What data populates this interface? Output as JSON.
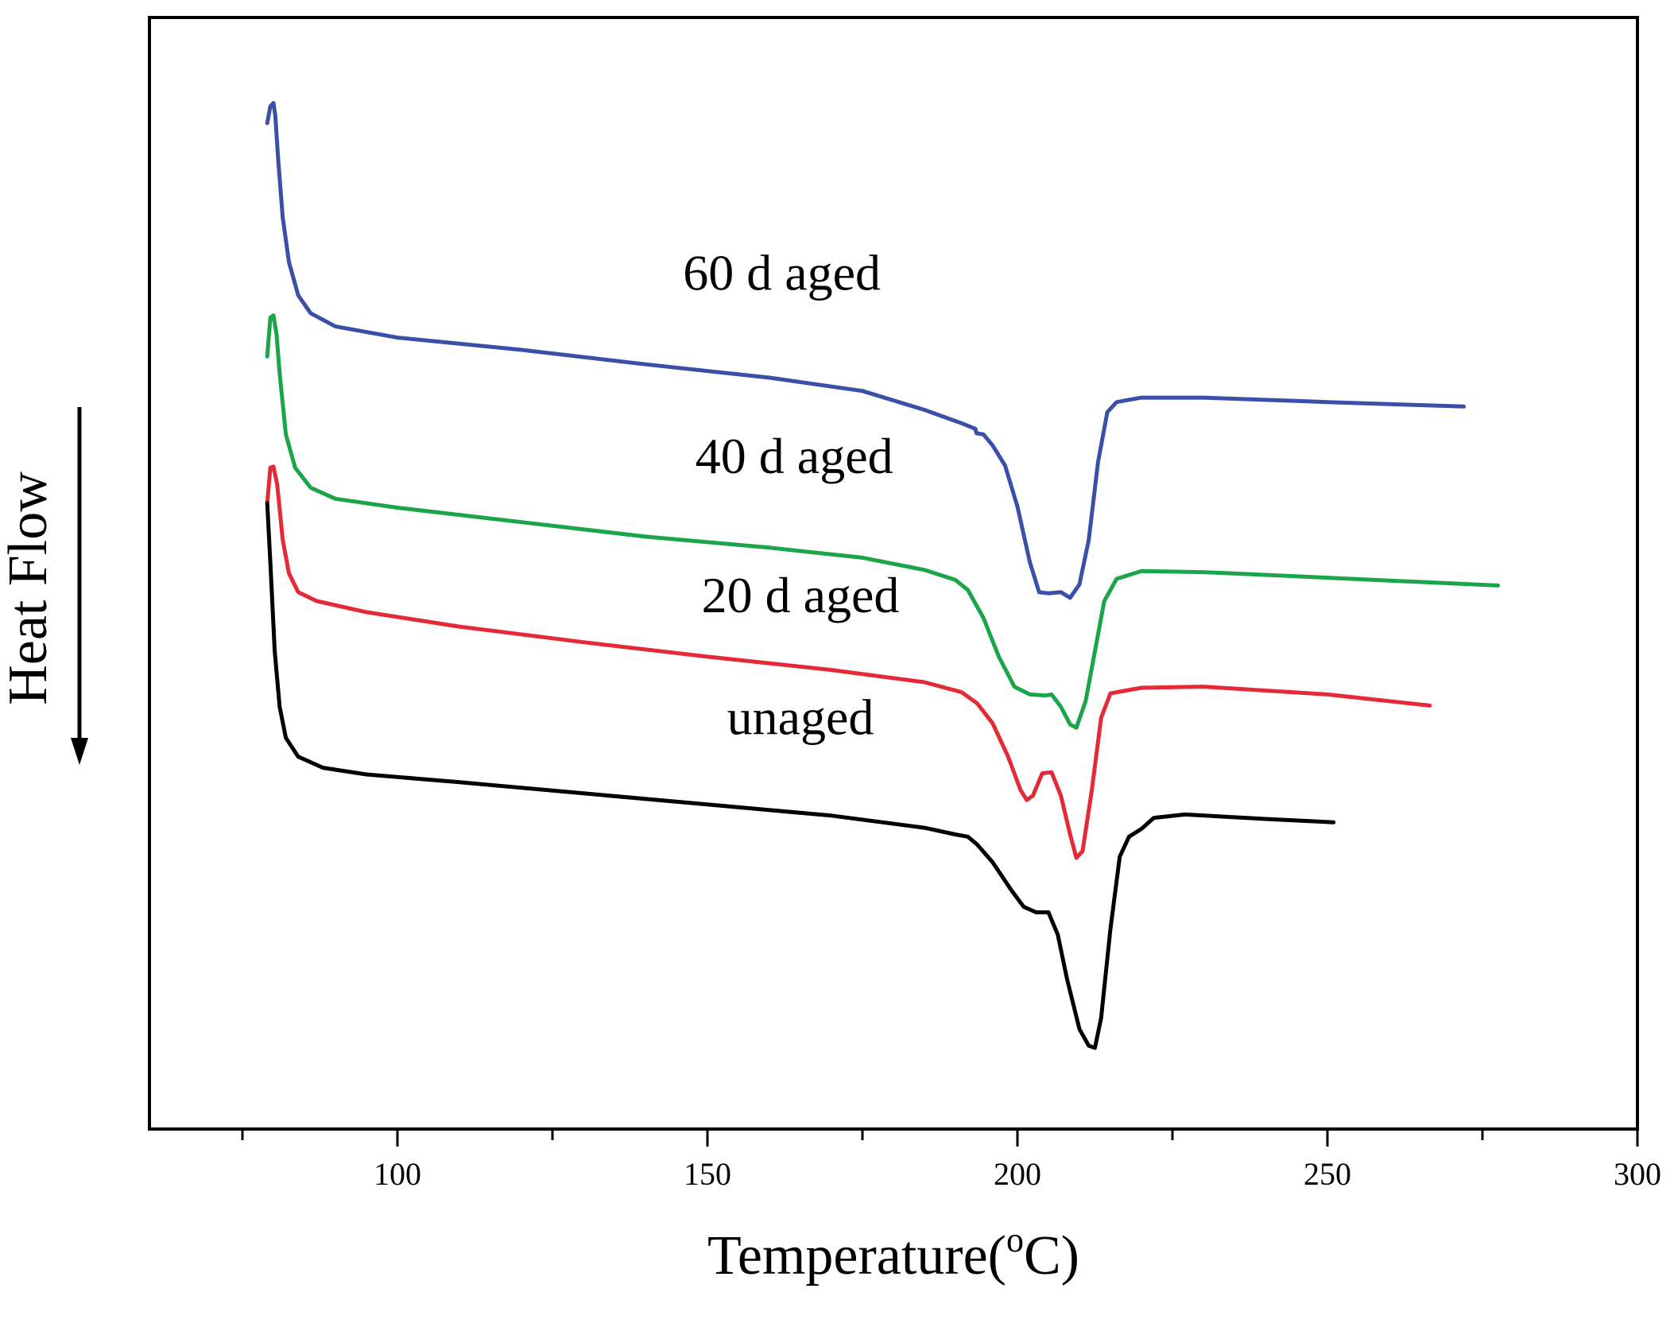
{
  "chart_data": {
    "type": "line",
    "title": "",
    "xlabel": "Temperature(",
    "xlabel_sup": "o",
    "xlabel_unit": "C)",
    "ylabel": "Heat Flow",
    "ylabel_note": "arrow pointing down",
    "xlim": [
      60,
      300
    ],
    "ylim": [
      0,
      100
    ],
    "x_ticks": [
      100,
      150,
      200,
      250,
      300
    ],
    "x_tick_labels": [
      "100",
      "150",
      "200",
      "250",
      "300"
    ],
    "x_minor_ticks": [
      75,
      125,
      175,
      225,
      275
    ],
    "y_ticks_shown": false,
    "grid": false,
    "series": [
      {
        "name": "60 d aged",
        "color": "#3a4fa8",
        "points": [
          [
            79,
            90.5
          ],
          [
            79.5,
            92
          ],
          [
            80,
            92.3
          ],
          [
            80.3,
            91.2
          ],
          [
            80.8,
            87
          ],
          [
            81.5,
            82
          ],
          [
            82.5,
            78
          ],
          [
            84,
            75
          ],
          [
            86,
            73.4
          ],
          [
            90,
            72.2
          ],
          [
            100,
            71.2
          ],
          [
            120,
            70.1
          ],
          [
            140,
            68.8
          ],
          [
            160,
            67.6
          ],
          [
            175,
            66.4
          ],
          [
            185,
            64.7
          ],
          [
            191,
            63.5
          ],
          [
            193.2,
            63
          ],
          [
            193.4,
            62.6
          ],
          [
            194.5,
            62.5
          ],
          [
            196,
            61.5
          ],
          [
            198,
            59.7
          ],
          [
            200,
            56
          ],
          [
            202,
            51
          ],
          [
            203.5,
            48.3
          ],
          [
            205,
            48.2
          ],
          [
            207,
            48.3
          ],
          [
            208.5,
            47.8
          ],
          [
            210,
            49
          ],
          [
            211.5,
            53
          ],
          [
            213,
            60
          ],
          [
            214.5,
            64.5
          ],
          [
            216,
            65.4
          ],
          [
            220,
            65.8
          ],
          [
            230,
            65.8
          ],
          [
            250,
            65.4
          ],
          [
            272,
            65
          ]
        ]
      },
      {
        "name": "40 d aged",
        "color": "#1aa54a",
        "points": [
          [
            79,
            69.5
          ],
          [
            79.5,
            73
          ],
          [
            80,
            73.2
          ],
          [
            80.5,
            71.5
          ],
          [
            81,
            68
          ],
          [
            82,
            62.5
          ],
          [
            83.5,
            59.5
          ],
          [
            86,
            57.7
          ],
          [
            90,
            56.7
          ],
          [
            100,
            55.9
          ],
          [
            120,
            54.6
          ],
          [
            140,
            53.3
          ],
          [
            160,
            52.3
          ],
          [
            175,
            51.4
          ],
          [
            185,
            50.3
          ],
          [
            190,
            49.4
          ],
          [
            192,
            48.5
          ],
          [
            194.5,
            46
          ],
          [
            197,
            42.5
          ],
          [
            199.5,
            39.8
          ],
          [
            202,
            39.1
          ],
          [
            204.5,
            39
          ],
          [
            205.5,
            39.1
          ],
          [
            207,
            38
          ],
          [
            208.5,
            36.4
          ],
          [
            209.5,
            36.1
          ],
          [
            211,
            38.5
          ],
          [
            212.5,
            43
          ],
          [
            214,
            47.5
          ],
          [
            216,
            49.5
          ],
          [
            220,
            50.2
          ],
          [
            230,
            50.1
          ],
          [
            250,
            49.6
          ],
          [
            277.5,
            48.9
          ]
        ]
      },
      {
        "name": "20 d aged",
        "color": "#e32a36",
        "points": [
          [
            79,
            56.3
          ],
          [
            79.5,
            59.5
          ],
          [
            80,
            59.6
          ],
          [
            80.6,
            58
          ],
          [
            81.5,
            53
          ],
          [
            82.5,
            50
          ],
          [
            84,
            48.3
          ],
          [
            87,
            47.5
          ],
          [
            95,
            46.5
          ],
          [
            110,
            45.2
          ],
          [
            130,
            43.8
          ],
          [
            150,
            42.5
          ],
          [
            170,
            41.3
          ],
          [
            185,
            40.2
          ],
          [
            191,
            39.3
          ],
          [
            193.5,
            38.3
          ],
          [
            196,
            36.5
          ],
          [
            198.5,
            33.5
          ],
          [
            200.5,
            30.5
          ],
          [
            201.5,
            29.6
          ],
          [
            202.5,
            30
          ],
          [
            204,
            32
          ],
          [
            205.5,
            32.1
          ],
          [
            207,
            30
          ],
          [
            208.5,
            26.5
          ],
          [
            209.5,
            24.4
          ],
          [
            210.5,
            25
          ],
          [
            212,
            30.5
          ],
          [
            213.5,
            37
          ],
          [
            215,
            39.2
          ],
          [
            220,
            39.7
          ],
          [
            230,
            39.8
          ],
          [
            250,
            39.1
          ],
          [
            266.5,
            38.1
          ]
        ]
      },
      {
        "name": "unaged",
        "color": "#000000",
        "points": [
          [
            79,
            56.3
          ],
          [
            79.5,
            51
          ],
          [
            80.2,
            43
          ],
          [
            81,
            38
          ],
          [
            82,
            35.2
          ],
          [
            84,
            33.5
          ],
          [
            88,
            32.5
          ],
          [
            95,
            31.9
          ],
          [
            110,
            31.2
          ],
          [
            130,
            30.2
          ],
          [
            150,
            29.2
          ],
          [
            170,
            28.2
          ],
          [
            185,
            27.1
          ],
          [
            190,
            26.5
          ],
          [
            192,
            26.3
          ],
          [
            193.5,
            25.6
          ],
          [
            196,
            24
          ],
          [
            199,
            21.5
          ],
          [
            201,
            20
          ],
          [
            203,
            19.5
          ],
          [
            205,
            19.5
          ],
          [
            206.5,
            17.5
          ],
          [
            208,
            13.5
          ],
          [
            210,
            9
          ],
          [
            211.5,
            7.5
          ],
          [
            212.5,
            7.3
          ],
          [
            213.5,
            10
          ],
          [
            215,
            18
          ],
          [
            216.5,
            24.5
          ],
          [
            218,
            26.3
          ],
          [
            220,
            27
          ],
          [
            222,
            28
          ],
          [
            227,
            28.3
          ],
          [
            240,
            27.9
          ],
          [
            251,
            27.6
          ]
        ]
      }
    ],
    "annotations": [
      {
        "text": "60 d aged",
        "x": 162,
        "y": 75.5,
        "series": "60 d aged"
      },
      {
        "text": "40 d aged",
        "x": 164,
        "y": 59,
        "series": "40 d aged"
      },
      {
        "text": "20 d aged",
        "x": 165,
        "y": 46.5,
        "series": "20 d aged"
      },
      {
        "text": "unaged",
        "x": 165,
        "y": 35.5,
        "series": "unaged"
      }
    ]
  }
}
